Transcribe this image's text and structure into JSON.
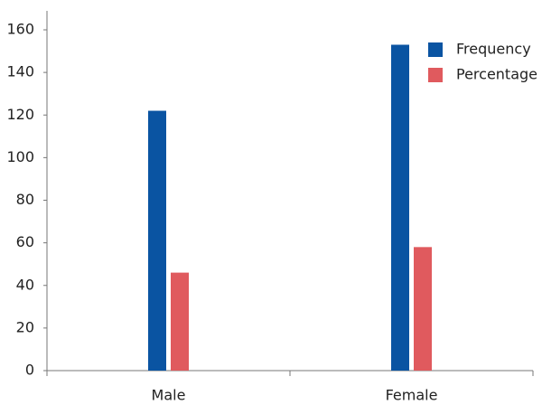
{
  "chart_data": {
    "type": "bar",
    "categories": [
      "Male",
      "Female"
    ],
    "series": [
      {
        "name": "Frequency",
        "color": "#0a54a2",
        "values": [
          122,
          153
        ]
      },
      {
        "name": "Percentage",
        "color": "#e05a5e",
        "values": [
          46,
          58
        ]
      }
    ],
    "ylim": [
      0,
      160
    ],
    "yticks": [
      0,
      20,
      40,
      60,
      80,
      100,
      120,
      140,
      160
    ],
    "grid": false,
    "legend": "top-right"
  }
}
